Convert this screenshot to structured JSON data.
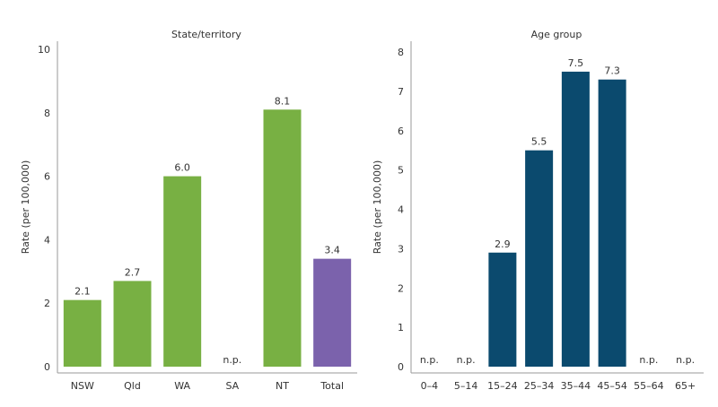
{
  "chart_data": [
    {
      "type": "bar",
      "title": "State/territory",
      "ylabel": "Rate (per 100,000)",
      "xlabel": "",
      "ylim": [
        0,
        10
      ],
      "yticks": [
        0,
        2,
        4,
        6,
        8,
        10
      ],
      "categories": [
        "NSW",
        "Qld",
        "WA",
        "SA",
        "NT",
        "Total"
      ],
      "values": [
        2.1,
        2.7,
        6.0,
        null,
        8.1,
        3.4
      ],
      "labels": [
        "2.1",
        "2.7",
        "6.0",
        "n.p.",
        "8.1",
        "3.4"
      ],
      "colors": [
        "#78b043",
        "#78b043",
        "#78b043",
        "#78b043",
        "#78b043",
        "#7b62ac"
      ],
      "grid": false
    },
    {
      "type": "bar",
      "title": "Age group",
      "ylabel": "Rate (per 100,000)",
      "xlabel": "",
      "ylim": [
        0,
        8
      ],
      "yticks": [
        0,
        1,
        2,
        3,
        4,
        5,
        6,
        7,
        8
      ],
      "categories": [
        "0–4",
        "5–14",
        "15–24",
        "25–34",
        "35–44",
        "45–54",
        "55–64",
        "65+"
      ],
      "values": [
        null,
        null,
        2.9,
        5.5,
        7.5,
        7.3,
        null,
        null
      ],
      "labels": [
        "n.p.",
        "n.p.",
        "2.9",
        "5.5",
        "7.5",
        "7.3",
        "n.p.",
        "n.p."
      ],
      "colors": [
        "#0b4a6e",
        "#0b4a6e",
        "#0b4a6e",
        "#0b4a6e",
        "#0b4a6e",
        "#0b4a6e",
        "#0b4a6e",
        "#0b4a6e"
      ],
      "grid": false
    }
  ]
}
